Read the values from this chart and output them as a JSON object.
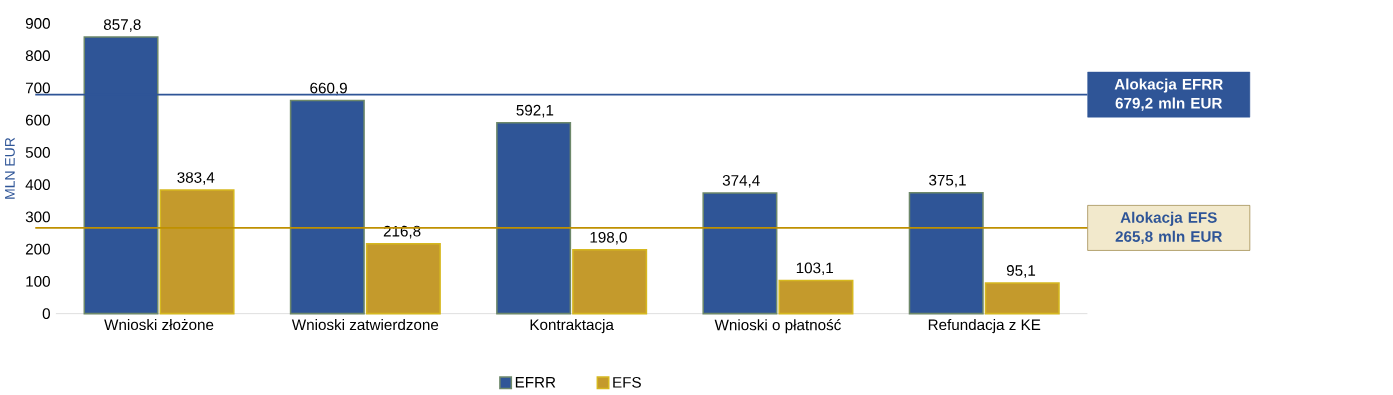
{
  "chart_data": {
    "type": "bar",
    "ylabel": "MLN EUR",
    "categories": [
      "Wnioski złożone",
      "Wnioski zatwierdzone",
      "Kontraktacja",
      "Wnioski o płatność",
      "Refundacja z KE"
    ],
    "series": [
      {
        "name": "EFRR",
        "color": "#2f5597",
        "values": [
          857.8,
          660.9,
          592.1,
          374.4,
          375.1
        ],
        "value_labels": [
          "857,8",
          "660,9",
          "592,1",
          "374,4",
          "375,1"
        ]
      },
      {
        "name": "EFS",
        "color": "#c49a2c",
        "values": [
          383.4,
          216.8,
          198.0,
          103.1,
          95.1
        ],
        "value_labels": [
          "383,4",
          "216,8",
          "198,0",
          "103,1",
          "95,1"
        ]
      }
    ],
    "ylim": [
      0,
      900
    ],
    "yticks": [
      0,
      100,
      200,
      300,
      400,
      500,
      600,
      700,
      800,
      900
    ],
    "ref_lines": [
      {
        "axis": "y",
        "value": 679.2,
        "label": "Alokacja EFRR 679,2 mln EUR",
        "color": "#2f5597"
      },
      {
        "axis": "y",
        "value": 265.8,
        "label": "Alokacja EFS 265,8 mln EUR",
        "color": "#bf9000"
      }
    ],
    "legend": "bottom",
    "grid": false
  }
}
